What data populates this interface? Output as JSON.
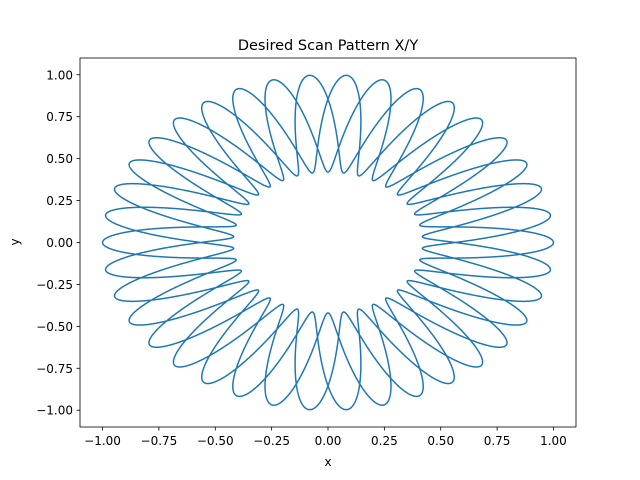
{
  "chart_data": {
    "type": "line",
    "title": "Desired Scan Pattern X/Y",
    "xlabel": "x",
    "ylabel": "y",
    "xlim": [
      -1.1,
      1.1
    ],
    "ylim": [
      -1.1,
      1.1
    ],
    "xticks": [
      -1.0,
      -0.75,
      -0.5,
      -0.25,
      0.0,
      0.25,
      0.5,
      0.75,
      1.0
    ],
    "yticks": [
      -1.0,
      -0.75,
      -0.5,
      -0.25,
      0.0,
      0.25,
      0.5,
      0.75,
      1.0
    ],
    "xtick_labels": [
      "−1.00",
      "−0.75",
      "−0.50",
      "−0.25",
      "0.00",
      "0.25",
      "0.50",
      "0.75",
      "1.00"
    ],
    "ytick_labels": [
      "−1.00",
      "−0.75",
      "−0.50",
      "−0.25",
      "0.00",
      "0.25",
      "0.50",
      "0.75",
      "1.00"
    ],
    "grid": false,
    "series": [
      {
        "color": "#1f77b4",
        "pattern": "rose",
        "outer_radius": 1.0,
        "inner_radius": 0.42,
        "petals": 38,
        "turns": 3
      }
    ]
  }
}
